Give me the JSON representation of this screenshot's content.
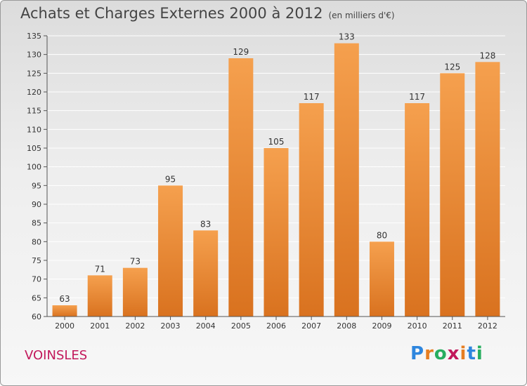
{
  "title": "Achats et Charges Externes 2000 à 2012",
  "subtitle": "(en milliers d'€)",
  "commune": "VOINSLES",
  "logo": {
    "letters": [
      "P",
      "r",
      "o",
      "x",
      "i",
      "t",
      "i"
    ],
    "colors": [
      "#2e86de",
      "#e67e22",
      "#27ae60",
      "#c2185b",
      "#e67e22",
      "#2e86de",
      "#27ae60"
    ]
  },
  "colors": {
    "bar_top": "#f5a04e",
    "bar_bottom": "#d9721f",
    "axis": "#555555",
    "grid": "#ffffff"
  },
  "chart_data": {
    "type": "bar",
    "categories": [
      "2000",
      "2001",
      "2002",
      "2003",
      "2004",
      "2005",
      "2006",
      "2007",
      "2008",
      "2009",
      "2010",
      "2011",
      "2012"
    ],
    "values": [
      63,
      71,
      73,
      95,
      83,
      129,
      105,
      117,
      133,
      80,
      117,
      125,
      128
    ],
    "ylim": [
      60,
      135
    ],
    "yticks": [
      60,
      65,
      70,
      75,
      80,
      85,
      90,
      95,
      100,
      105,
      110,
      115,
      120,
      125,
      130,
      135
    ],
    "grid": true
  }
}
